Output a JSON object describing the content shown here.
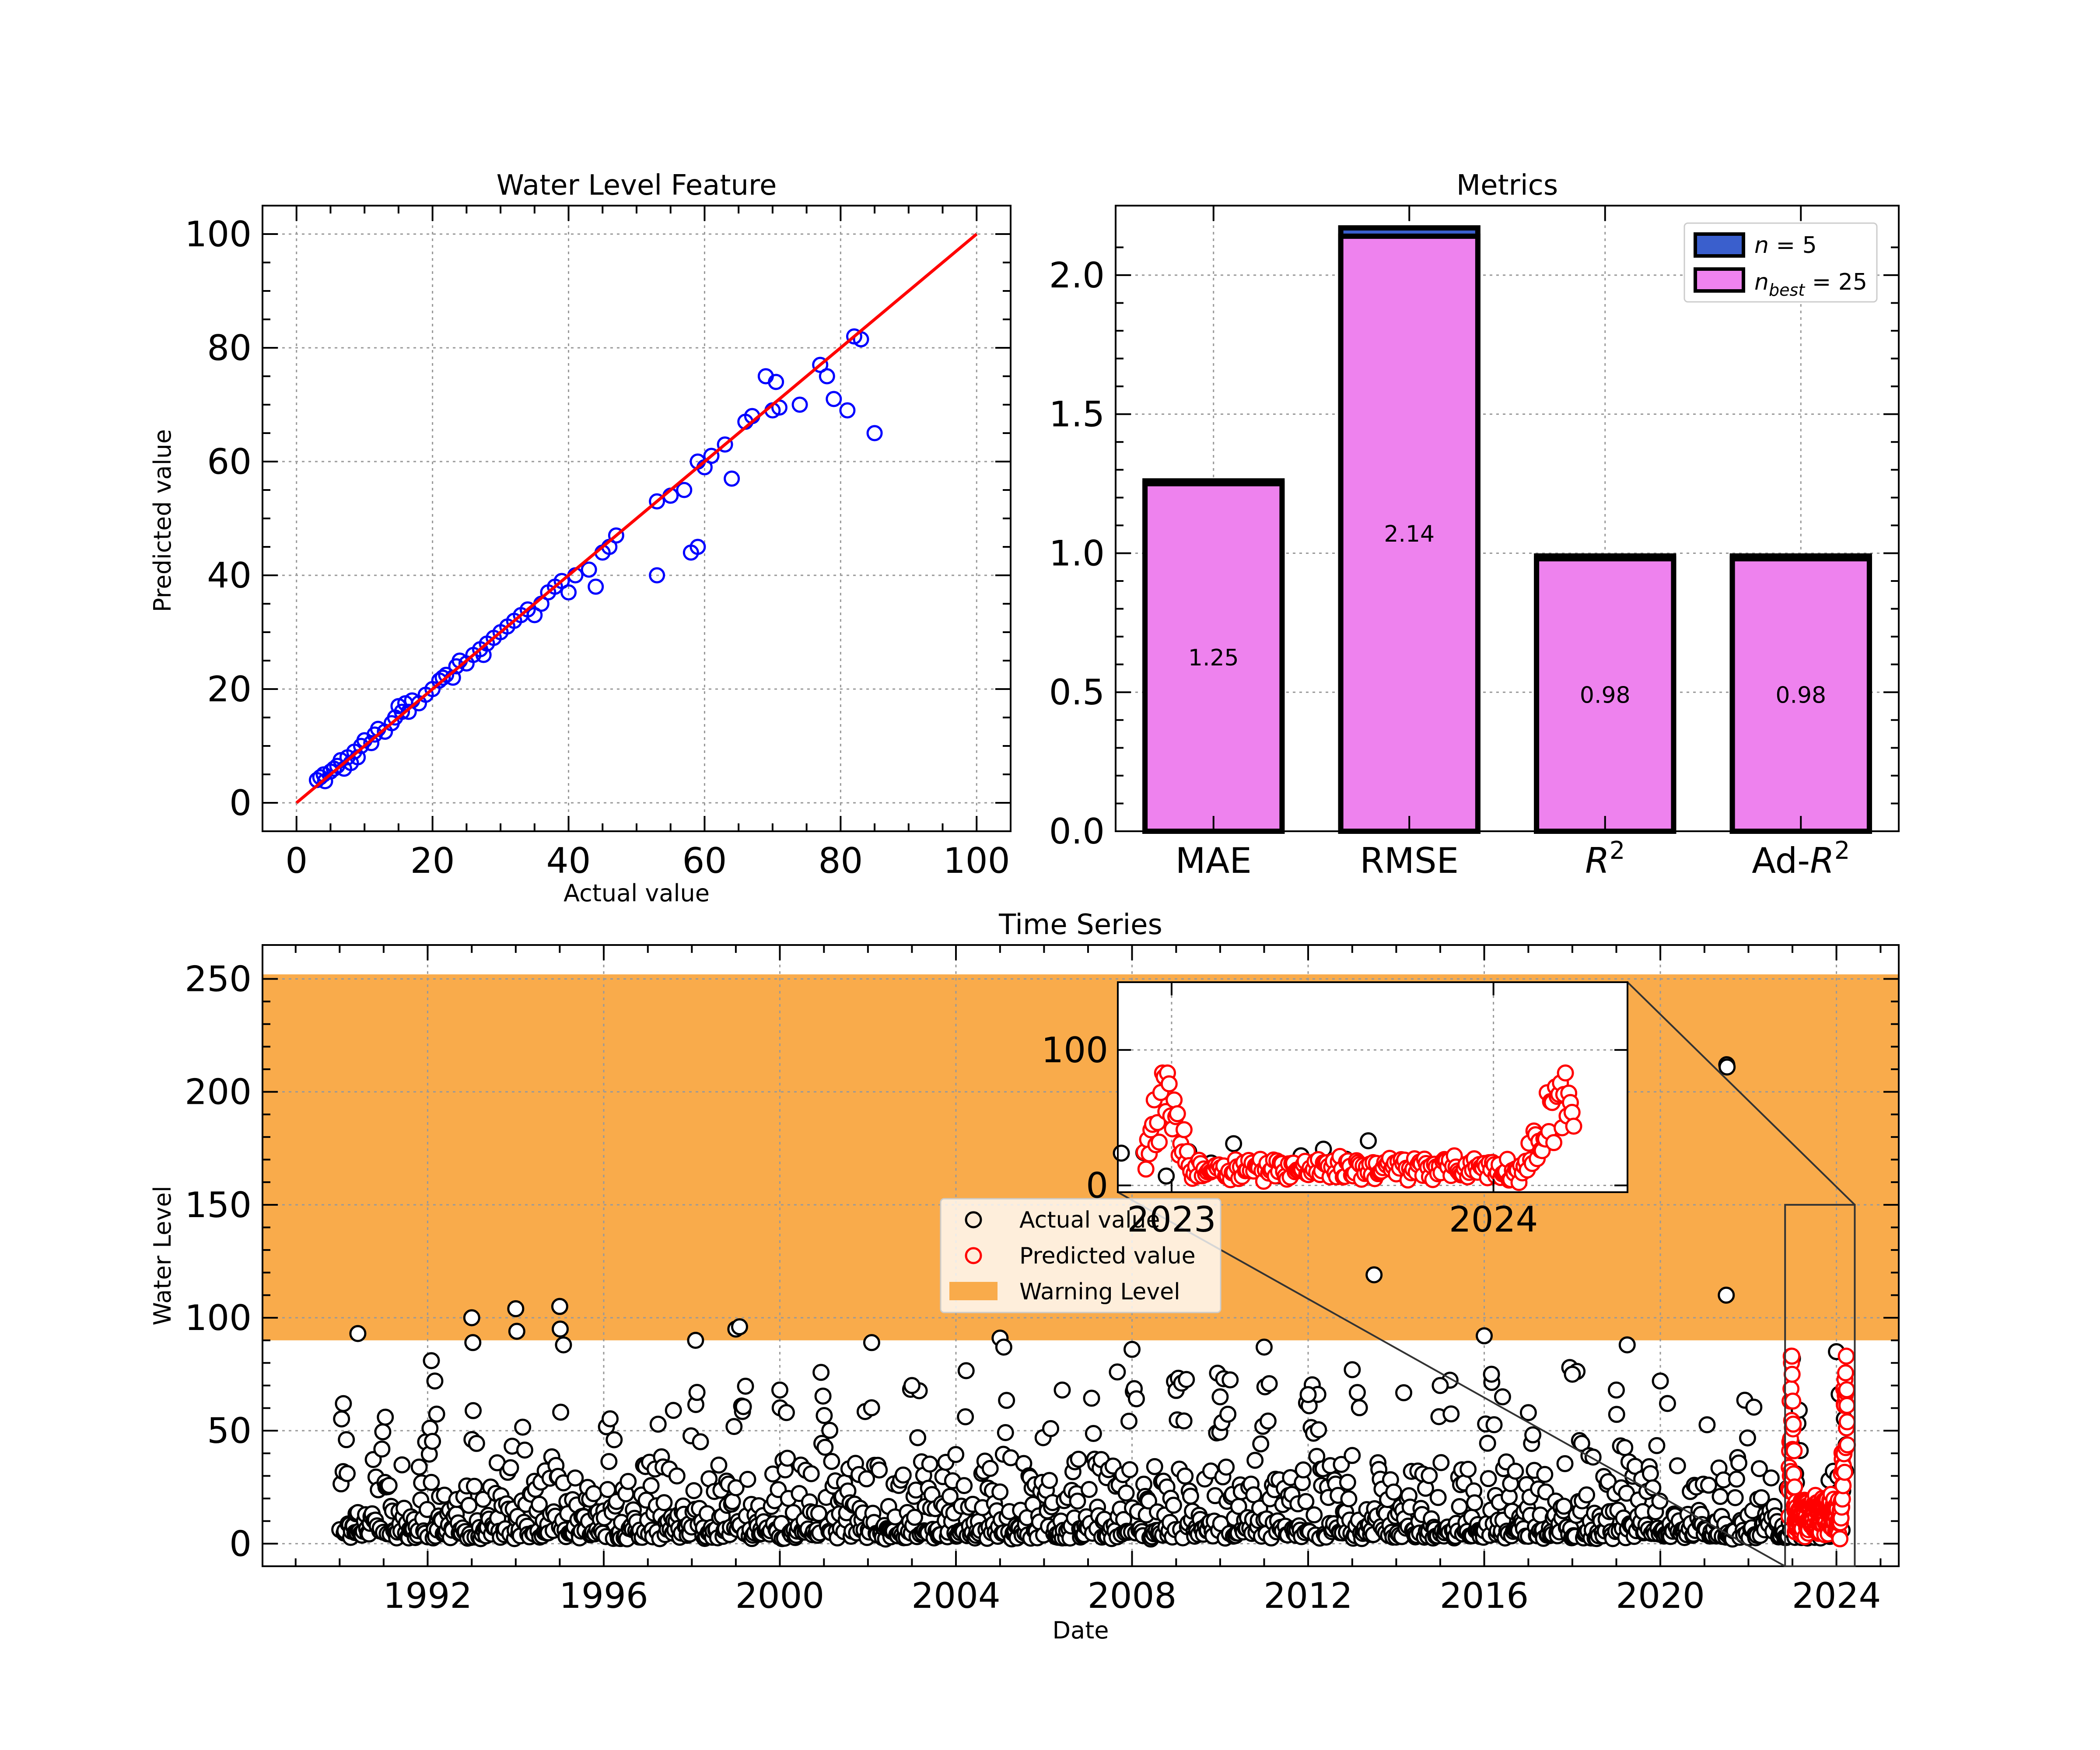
{
  "chart_data": [
    {
      "id": "scatter",
      "type": "scatter",
      "title": "Water Level Feature",
      "xlabel": "Actual value",
      "ylabel": "Predicted value",
      "xlim": [
        -5,
        105
      ],
      "ylim": [
        -5,
        105
      ],
      "xticks": [
        0,
        20,
        40,
        60,
        80,
        100
      ],
      "yticks": [
        0,
        20,
        40,
        60,
        80,
        100
      ],
      "grid": true,
      "colors": {
        "points": "#0000ff",
        "line": "#ff0000"
      },
      "reference_line": {
        "x": [
          0,
          100
        ],
        "y": [
          0,
          100
        ]
      },
      "points": [
        [
          3,
          4
        ],
        [
          3.5,
          4.5
        ],
        [
          4,
          5
        ],
        [
          4.2,
          3.8
        ],
        [
          5,
          5.5
        ],
        [
          5.5,
          6
        ],
        [
          6,
          6.5
        ],
        [
          6.5,
          7.5
        ],
        [
          7,
          6
        ],
        [
          7.5,
          8
        ],
        [
          8,
          7
        ],
        [
          8.5,
          9
        ],
        [
          9,
          8
        ],
        [
          9.5,
          10
        ],
        [
          10,
          11
        ],
        [
          11,
          10.5
        ],
        [
          11.5,
          12
        ],
        [
          12,
          13
        ],
        [
          13,
          12.5
        ],
        [
          14,
          14
        ],
        [
          14.5,
          15
        ],
        [
          15,
          17
        ],
        [
          15.5,
          16
        ],
        [
          16,
          17.5
        ],
        [
          16.5,
          16
        ],
        [
          17,
          18
        ],
        [
          18,
          17.5
        ],
        [
          19,
          19
        ],
        [
          20,
          20
        ],
        [
          21,
          21.5
        ],
        [
          21.5,
          22
        ],
        [
          22,
          22.5
        ],
        [
          23,
          22
        ],
        [
          23.5,
          24
        ],
        [
          24,
          25
        ],
        [
          25,
          24.5
        ],
        [
          26,
          26
        ],
        [
          27,
          27
        ],
        [
          27.5,
          26
        ],
        [
          28,
          28
        ],
        [
          29,
          29
        ],
        [
          30,
          30
        ],
        [
          31,
          31
        ],
        [
          32,
          32
        ],
        [
          33,
          33
        ],
        [
          34,
          34
        ],
        [
          35,
          33
        ],
        [
          36,
          35
        ],
        [
          37,
          37
        ],
        [
          38,
          38
        ],
        [
          39,
          39
        ],
        [
          40,
          37
        ],
        [
          41,
          40
        ],
        [
          43,
          41
        ],
        [
          44,
          38
        ],
        [
          45,
          44
        ],
        [
          46,
          45
        ],
        [
          47,
          47
        ],
        [
          53,
          40
        ],
        [
          53,
          53
        ],
        [
          55,
          54
        ],
        [
          57,
          55
        ],
        [
          58,
          44
        ],
        [
          59,
          45
        ],
        [
          59,
          60
        ],
        [
          60,
          59
        ],
        [
          61,
          61
        ],
        [
          63,
          63
        ],
        [
          64,
          57
        ],
        [
          66,
          67
        ],
        [
          67,
          68
        ],
        [
          69,
          75
        ],
        [
          70,
          69
        ],
        [
          70.5,
          74
        ],
        [
          71,
          69.5
        ],
        [
          74,
          70
        ],
        [
          77,
          77
        ],
        [
          78,
          75
        ],
        [
          79,
          71
        ],
        [
          81,
          69
        ],
        [
          82,
          82
        ],
        [
          83,
          81.5
        ],
        [
          85,
          65
        ]
      ]
    },
    {
      "id": "metrics",
      "type": "bar",
      "title": "Metrics",
      "categories": [
        "MAE",
        "RMSE",
        "R2",
        "Ad-R2"
      ],
      "ylim": [
        0,
        2.25
      ],
      "yticks": [
        "0.0",
        "0.5",
        "1.0",
        "1.5",
        "2.0"
      ],
      "grid": true,
      "legend_position": "top-right",
      "series": [
        {
          "name": "n = 5",
          "color": "#3a5fcd",
          "values": [
            1.26,
            2.17,
            0.99,
            0.99
          ]
        },
        {
          "name": "n_best = 25",
          "color": "#ee82ee",
          "values": [
            1.25,
            2.14,
            0.98,
            0.98
          ]
        }
      ],
      "bar_labels": [
        "1.25",
        "2.14",
        "0.98",
        "0.98"
      ]
    },
    {
      "id": "timeseries",
      "type": "scatter",
      "title": "Time Series",
      "xlabel": "Date",
      "ylabel": "Water Level",
      "xlim": [
        "1988-04-01",
        "2025-06-01"
      ],
      "ylim": [
        -10,
        265
      ],
      "xticks": [
        "1992",
        "1996",
        "2000",
        "2004",
        "2008",
        "2012",
        "2016",
        "2020",
        "2024"
      ],
      "yticks": [
        0,
        50,
        100,
        150,
        200,
        250
      ],
      "grid": true,
      "warning_band": {
        "from": 90,
        "to": 252,
        "color": "#f9ab4b"
      },
      "legend_position": "center",
      "legend": [
        "Actual value",
        "Predicted value",
        "Warning Level"
      ],
      "actual_range": {
        "start": "1990-01-01",
        "end": "2024-04-01",
        "typical_max": 75
      },
      "actual_peaks": [
        [
          "1990-06-01",
          93
        ],
        [
          "1990-02-01",
          62
        ],
        [
          "1991-01-15",
          56
        ],
        [
          "1992-02-01",
          81
        ],
        [
          "1992-03-01",
          72
        ],
        [
          "1993-01-01",
          100
        ],
        [
          "1993-01-10",
          89
        ],
        [
          "1994-01-01",
          104
        ],
        [
          "1994-01-10",
          94
        ],
        [
          "1995-01-01",
          105
        ],
        [
          "1995-01-05",
          95
        ],
        [
          "1995-02-01",
          88
        ],
        [
          "1997-08-01",
          59
        ],
        [
          "1998-02-01",
          90
        ],
        [
          "1999-01-01",
          95
        ],
        [
          "1999-02-01",
          96
        ],
        [
          "2000-01-01",
          68
        ],
        [
          "2002-02-01",
          89
        ],
        [
          "2003-01-01",
          70
        ],
        [
          "2005-01-01",
          91
        ],
        [
          "2005-02-01",
          87
        ],
        [
          "2006-06-01",
          68
        ],
        [
          "2007-09-01",
          76
        ],
        [
          "2008-01-01",
          86
        ],
        [
          "2010-01-01",
          65
        ],
        [
          "2011-01-01",
          87
        ],
        [
          "2012-01-01",
          66
        ],
        [
          "2013-01-01",
          77
        ],
        [
          "2013-07-01",
          119
        ],
        [
          "2015-01-01",
          70
        ],
        [
          "2016-01-01",
          92
        ],
        [
          "2016-03-01",
          75
        ],
        [
          "2016-06-01",
          65
        ],
        [
          "2017-01-01",
          58
        ],
        [
          "2018-01-01",
          75
        ],
        [
          "2019-01-01",
          68
        ],
        [
          "2019-04-01",
          88
        ],
        [
          "2020-01-01",
          72
        ],
        [
          "2021-07-01",
          110
        ],
        [
          "2021-07-05",
          212
        ],
        [
          "2021-07-08",
          211
        ],
        [
          "2023-01-01",
          82
        ],
        [
          "2024-01-01",
          85
        ]
      ],
      "predicted_range": {
        "start": "2022-12-01",
        "end": "2024-04-01",
        "max": 83
      },
      "inset": {
        "xlim": [
          "2022-11-01",
          "2024-06-01"
        ],
        "ylim": [
          -5,
          150
        ],
        "xticks": [
          "2023",
          "2024"
        ],
        "yticks": [
          0,
          100
        ],
        "zoom_box": {
          "x": [
            "2022-11-01",
            "2024-06-01"
          ],
          "y": [
            -10,
            150
          ]
        }
      }
    }
  ]
}
